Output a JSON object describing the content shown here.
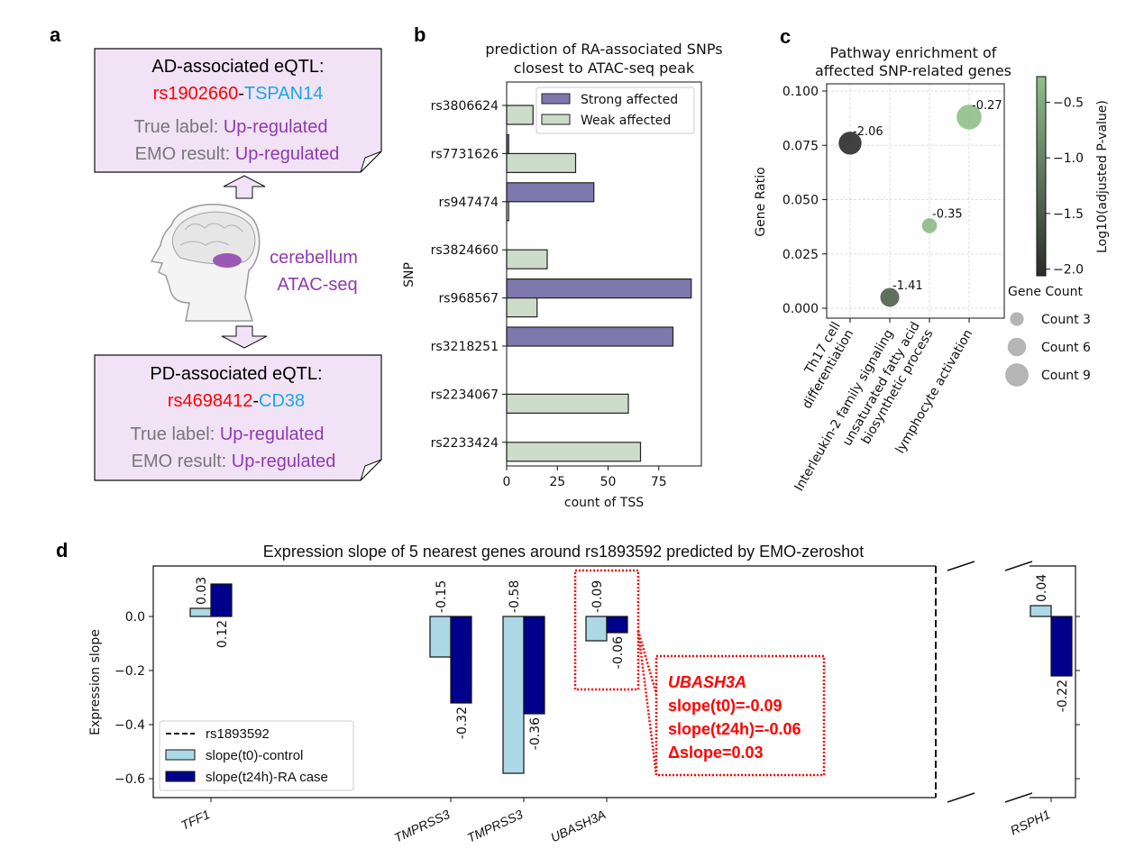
{
  "panel_letters": {
    "a": "a",
    "b": "b",
    "c": "c",
    "d": "d"
  },
  "panel_a": {
    "box1": {
      "title": "AD-associated eQTL:",
      "snp": "rs1902660",
      "dash": "-",
      "gene": "TSPAN14",
      "true_label_key": "True label: ",
      "true_label_val": "Up-regulated",
      "emo_key": "EMO result: ",
      "emo_val": "Up-regulated"
    },
    "box2": {
      "title": "PD-associated eQTL:",
      "snp": "rs4698412",
      "dash": "-",
      "gene": "CD38",
      "true_label_key": "True label: ",
      "true_label_val": "Up-regulated",
      "emo_key": "EMO result: ",
      "emo_val": "Up-regulated"
    },
    "region_line1": "cerebellum",
    "region_line2": "ATAC-seq",
    "colors": {
      "box_fill": "#f1e2f6",
      "snp": "#ff0000",
      "gene": "#1aa7e8",
      "label_key": "#777777",
      "label_val": "#8e3bb0"
    }
  },
  "chart_data": [
    {
      "id": "b",
      "type": "bar",
      "orientation": "horizontal",
      "title": [
        "prediction of RA-associated SNPs",
        "closest to ATAC-seq peak"
      ],
      "xlabel": "count of TSS",
      "ylabel": "SNP",
      "categories": [
        "rs3806624",
        "rs7731626",
        "rs947474",
        "rs3824660",
        "rs968567",
        "rs3218251",
        "rs2234067",
        "rs2233424"
      ],
      "series": [
        {
          "name": "Strong affected",
          "color": "#7f78ad",
          "values": [
            0,
            1,
            43,
            0,
            91,
            82,
            0,
            0
          ]
        },
        {
          "name": "Weak affected",
          "color": "#ccdcc8",
          "values": [
            13,
            34,
            1,
            20,
            15,
            0,
            60,
            66
          ]
        }
      ],
      "xticks": [
        0,
        25,
        50,
        75
      ],
      "xlim": [
        0,
        96
      ],
      "legend": "top-right"
    },
    {
      "id": "c",
      "type": "scatter",
      "title": [
        "Pathway enrichment of",
        "affected SNP-related genes"
      ],
      "ylabel": "Gene Ratio",
      "categories": [
        "Th17 cell\ndifferentiation",
        "Interleukin-2 family signaling",
        "unsaturated fatty acid\nbiosynthetic process",
        "lymphocyte activation"
      ],
      "points": [
        {
          "category": 0,
          "y": 0.076,
          "color_value": -2.06,
          "label": "-2.06",
          "count": 7
        },
        {
          "category": 1,
          "y": 0.005,
          "color_value": -1.41,
          "label": "-1.41",
          "count": 5
        },
        {
          "category": 2,
          "y": 0.038,
          "color_value": -0.35,
          "label": "-0.35",
          "count": 3
        },
        {
          "category": 3,
          "y": 0.088,
          "color_value": -0.27,
          "label": "-0.27",
          "count": 8
        }
      ],
      "yticks": [
        "0.000",
        "0.025",
        "0.050",
        "0.075",
        "0.100"
      ],
      "ylim": [
        -0.004,
        0.102
      ],
      "grid": true,
      "colorbar": {
        "label": "Log10(adjusted P-value)",
        "ticks": [
          "−0.5",
          "−1.0",
          "−1.5",
          "−2.0"
        ],
        "tick_values": [
          -0.5,
          -1.0,
          -1.5,
          -2.0
        ],
        "range": [
          -2.06,
          -0.27
        ],
        "color_low": "#2b2b2b",
        "color_high": "#8fbf8a"
      },
      "size_legend": {
        "title": "Gene Count",
        "entries": [
          {
            "label": "Count 3",
            "count": 3
          },
          {
            "label": "Count 6",
            "count": 6
          },
          {
            "label": "Count 9",
            "count": 9
          }
        ]
      }
    },
    {
      "id": "d",
      "type": "bar",
      "title": "Expression slope of 5 nearest genes around rs1893592 predicted by EMO-zeroshot",
      "ylabel": "Expression slope",
      "categories": [
        "TFF1",
        "TMPRSS3",
        "TMPRSS3",
        "UBASH3A",
        "RSPH1"
      ],
      "series": [
        {
          "name": "slope(t0)-control",
          "color": "#add8e6",
          "values": [
            0.03,
            -0.15,
            -0.58,
            -0.09,
            0.04
          ],
          "labels": [
            "0.03",
            "-0.15",
            "-0.58",
            "-0.09",
            "0.04"
          ]
        },
        {
          "name": "slope(t24h)-RA case",
          "color": "#00008b",
          "values": [
            0.12,
            -0.32,
            -0.36,
            -0.06,
            -0.22
          ],
          "labels": [
            "0.12",
            "-0.32",
            "-0.36",
            "-0.06",
            "-0.22"
          ]
        }
      ],
      "marker_line": {
        "name": "rs1893592",
        "style": "dashed"
      },
      "yticks": [
        "0.0",
        "−0.2",
        "−0.4",
        "−0.6"
      ],
      "ytick_values": [
        0,
        -0.2,
        -0.4,
        -0.6
      ],
      "ylim": [
        -0.67,
        0.187
      ],
      "broken_axis": true,
      "legend": "lower-left",
      "annotation": {
        "gene": "UBASH3A",
        "lines": [
          "slope(t0)=-0.09",
          "slope(t24h)=-0.06",
          "Δslope=0.03"
        ],
        "color": "#ff0000"
      }
    }
  ]
}
